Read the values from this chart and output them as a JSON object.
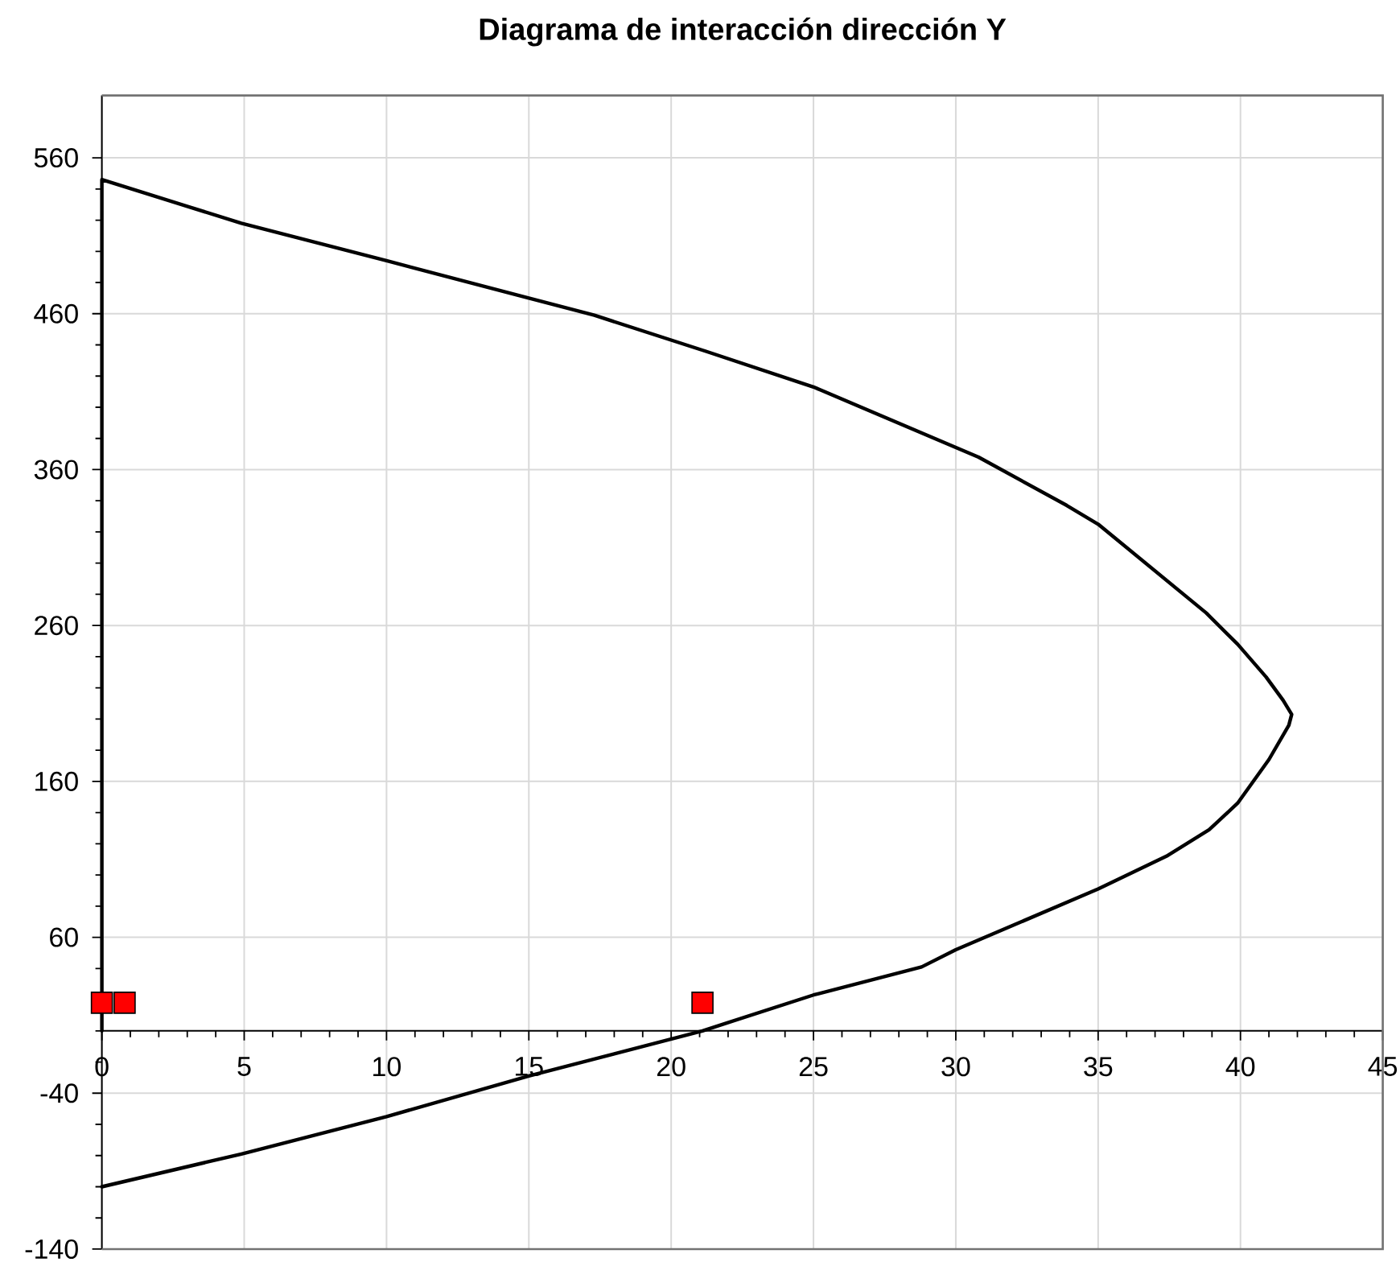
{
  "chart_data": {
    "type": "line",
    "title": "Diagrama de interacción dirección Y",
    "xlim": [
      0,
      45
    ],
    "xticks": [
      0,
      5,
      10,
      15,
      20,
      25,
      30,
      35,
      40,
      45
    ],
    "ylim": [
      -140,
      600
    ],
    "yticks": [
      -140,
      -40,
      60,
      160,
      260,
      360,
      460,
      560
    ],
    "grid": true,
    "series": [
      {
        "color": "#000000",
        "x": [
          0,
          0,
          4.9,
          10.0,
          15.0,
          17.3,
          21.2,
          25.0,
          30.8,
          33.9,
          35.0,
          38.8,
          39.9,
          40.9,
          41.5,
          41.8,
          41.7,
          41.0,
          39.9,
          38.9,
          37.4,
          35.0,
          30.0,
          28.8,
          25.0,
          21.1,
          15.0,
          10.0,
          4.9,
          0
        ],
        "values": [
          0,
          546,
          518,
          494,
          470,
          459,
          436,
          413,
          368,
          337,
          325,
          268,
          248,
          227,
          212,
          203,
          196,
          174,
          146,
          129,
          112,
          91,
          52,
          41,
          23,
          0,
          -29,
          -55,
          -79,
          -100
        ]
      },
      {
        "type": "scatter",
        "color": "#ff0000",
        "marker": "square",
        "x": [
          0,
          0.8,
          21.1
        ],
        "values": [
          18,
          18,
          18
        ]
      }
    ]
  }
}
